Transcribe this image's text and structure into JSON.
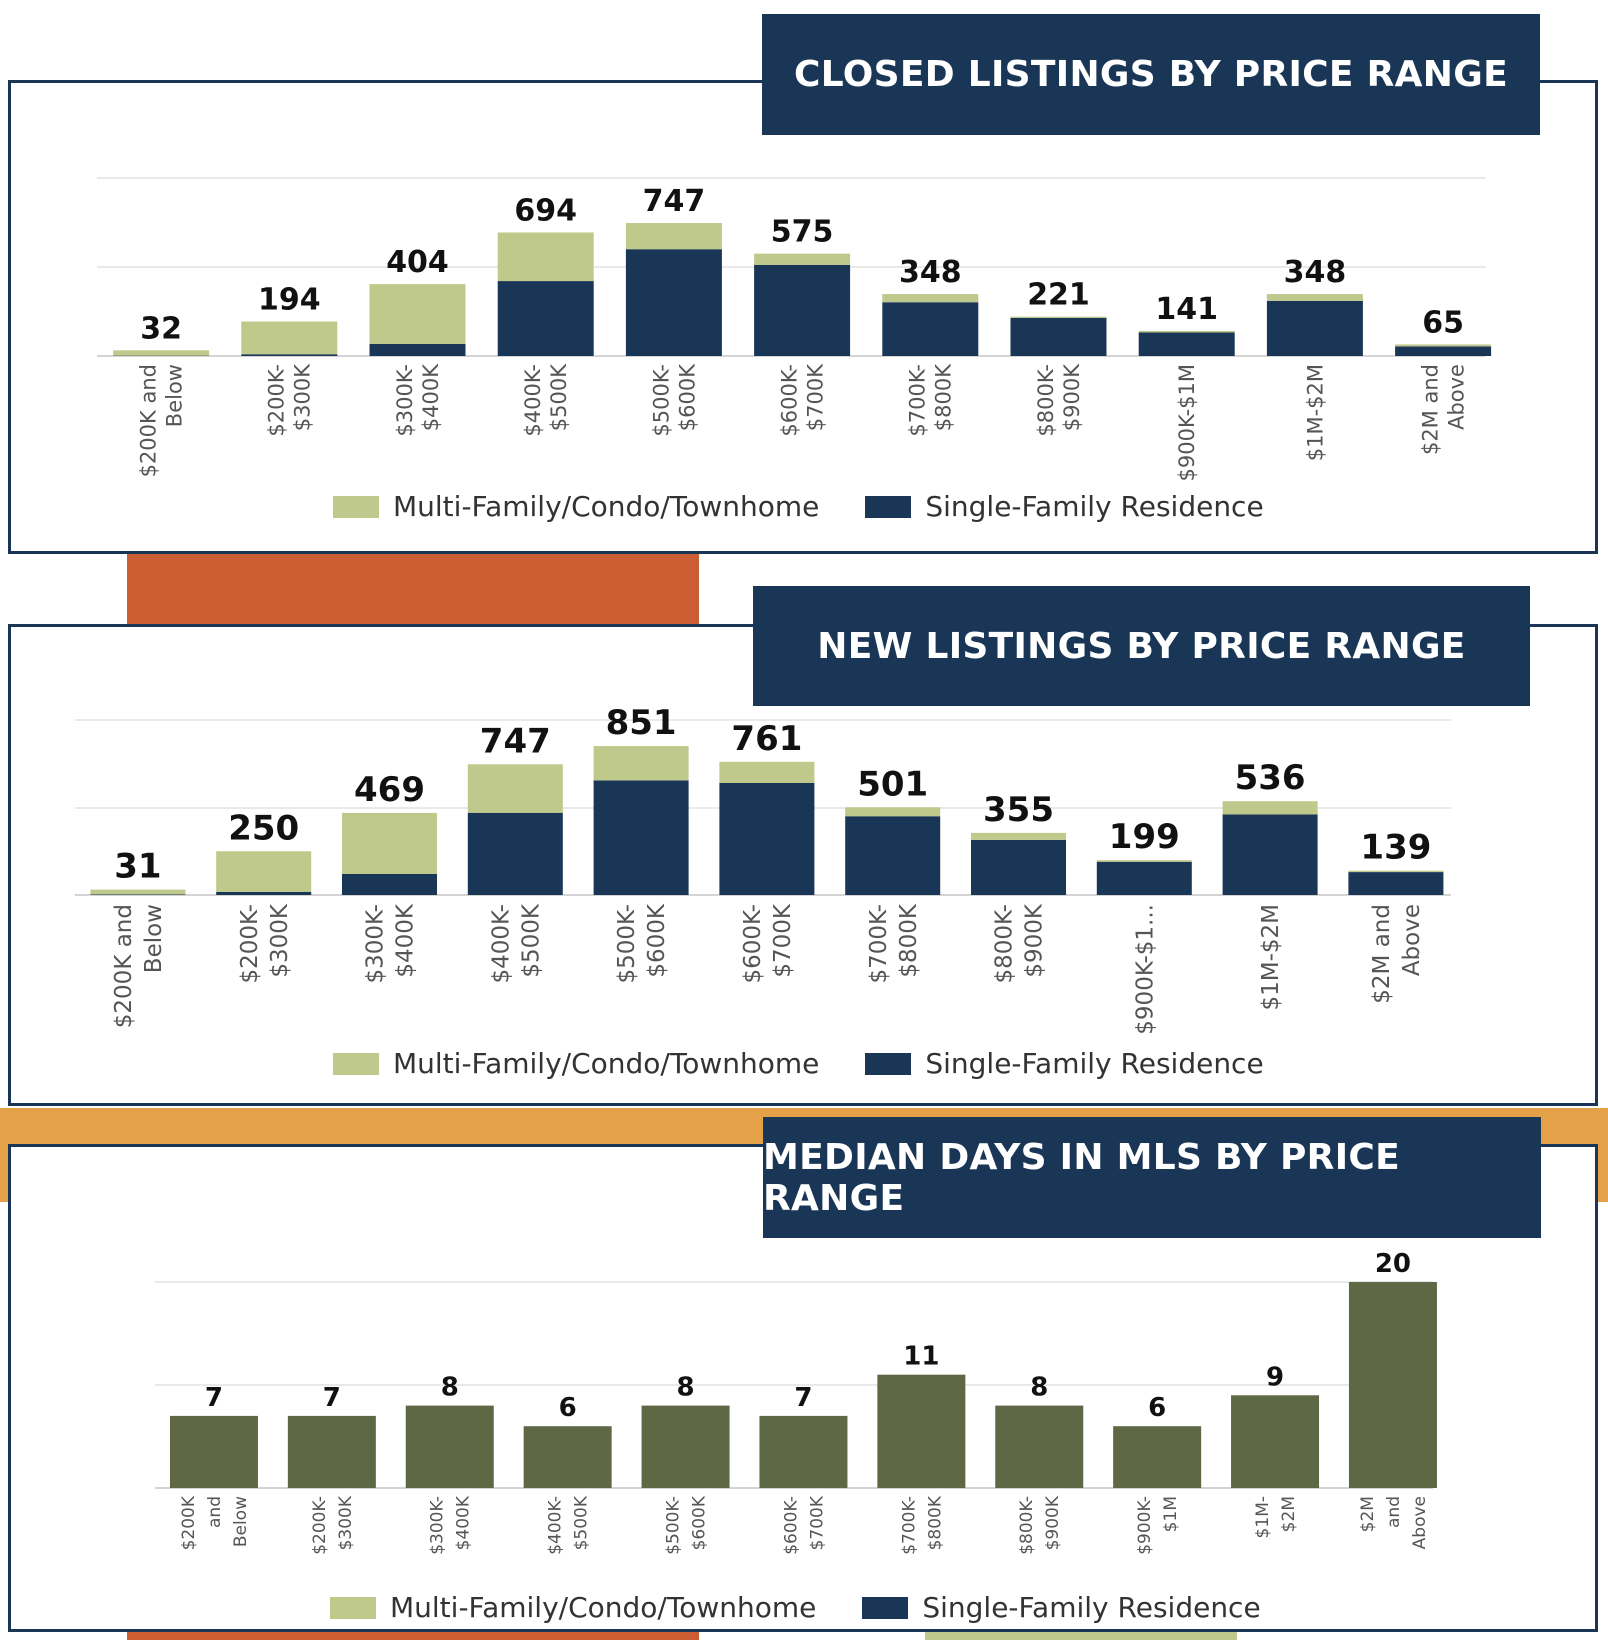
{
  "colors": {
    "navy": "#1a3656",
    "sage": "#bfc98c",
    "olive": "#5f6845",
    "orange": "#cc5e33",
    "gold": "#e4a148"
  },
  "legend": {
    "multi_family": "Multi-Family/Condo/Townhome",
    "single_family": "Single-Family Residence"
  },
  "chart_data": [
    {
      "type": "bar",
      "title": "CLOSED LISTINGS BY PRICE RANGE",
      "stacked": true,
      "categories": [
        "$200K and Below",
        "$200K- $300K",
        "$300K- $400K",
        "$400K- $500K",
        "$500K- $600K",
        "$600K- $700K",
        "$700K- $800K",
        "$800K- $900K",
        "$900K-$1M",
        "$1M-$2M",
        "$2M and Above"
      ],
      "totals": [
        32,
        194,
        404,
        694,
        747,
        575,
        348,
        221,
        141,
        348,
        65
      ],
      "series": [
        {
          "name": "Single-Family Residence",
          "values": [
            2,
            10,
            68,
            421,
            600,
            512,
            302,
            214,
            132,
            310,
            54
          ]
        },
        {
          "name": "Multi-Family/Condo/Townhome",
          "values": [
            30,
            184,
            336,
            273,
            147,
            63,
            46,
            7,
            9,
            38,
            11
          ]
        }
      ],
      "ylim": [
        0,
        1000
      ],
      "grid": true,
      "legend_position": "bottom"
    },
    {
      "type": "bar",
      "title": "NEW LISTINGS BY PRICE RANGE",
      "stacked": true,
      "categories": [
        "$200K and Below",
        "$200K- $300K",
        "$300K- $400K",
        "$400K- $500K",
        "$500K- $600K",
        "$600K- $700K",
        "$700K- $800K",
        "$800K- $900K",
        "$900K-$1...",
        "$1M-$2M",
        "$2M and Above"
      ],
      "totals": [
        31,
        250,
        469,
        747,
        851,
        761,
        501,
        355,
        199,
        536,
        139
      ],
      "series": [
        {
          "name": "Single-Family Residence",
          "values": [
            3,
            18,
            120,
            470,
            655,
            640,
            450,
            315,
            190,
            460,
            131
          ]
        },
        {
          "name": "Multi-Family/Condo/Townhome",
          "values": [
            28,
            232,
            349,
            277,
            196,
            121,
            51,
            40,
            9,
            76,
            8
          ]
        }
      ],
      "ylim": [
        0,
        1000
      ],
      "grid": true,
      "legend_position": "bottom"
    },
    {
      "type": "bar",
      "title": "MEDIAN DAYS IN MLS BY PRICE RANGE",
      "stacked": false,
      "categories": [
        "$200K and Below",
        "$200K- $300K",
        "$300K- $400K",
        "$400K- $500K",
        "$500K- $600K",
        "$600K- $700K",
        "$700K- $800K",
        "$800K- $900K",
        "$900K- $1M",
        "$1M- $2M",
        "$2M and Above"
      ],
      "values": [
        7,
        7,
        8,
        6,
        8,
        7,
        11,
        8,
        6,
        9,
        20
      ],
      "ylim": [
        0,
        20
      ],
      "grid": true,
      "legend_position": "bottom"
    }
  ]
}
